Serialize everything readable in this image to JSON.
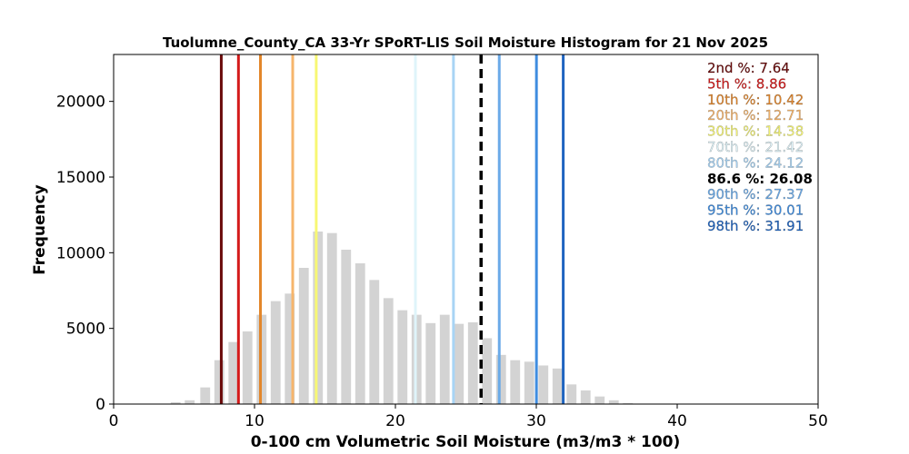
{
  "chart_data": {
    "type": "bar",
    "title": "Tuolumne_County_CA 33-Yr SPoRT-LIS Soil Moisture Histogram for 21 Nov 2025",
    "xlabel": "0-100 cm Volumetric Soil Moisture (m3/m3 * 100)",
    "ylabel": "Frequency",
    "xlim": [
      0,
      50
    ],
    "ylim": [
      0,
      23100
    ],
    "xticks": [
      0,
      10,
      20,
      30,
      40,
      50
    ],
    "yticks": [
      0,
      5000,
      10000,
      15000,
      20000
    ],
    "bar_color": "#d3d3d3",
    "bins": [
      {
        "x": 3.4,
        "value": 30
      },
      {
        "x": 4.4,
        "value": 120
      },
      {
        "x": 5.4,
        "value": 250
      },
      {
        "x": 6.5,
        "value": 1100
      },
      {
        "x": 7.5,
        "value": 2900
      },
      {
        "x": 8.5,
        "value": 4100
      },
      {
        "x": 9.5,
        "value": 4800
      },
      {
        "x": 10.5,
        "value": 5900
      },
      {
        "x": 11.5,
        "value": 6800
      },
      {
        "x": 12.5,
        "value": 7300
      },
      {
        "x": 13.5,
        "value": 9000
      },
      {
        "x": 14.5,
        "value": 11400
      },
      {
        "x": 15.5,
        "value": 11300
      },
      {
        "x": 16.5,
        "value": 10200
      },
      {
        "x": 17.5,
        "value": 9300
      },
      {
        "x": 18.5,
        "value": 8200
      },
      {
        "x": 19.5,
        "value": 7000
      },
      {
        "x": 20.5,
        "value": 6200
      },
      {
        "x": 21.5,
        "value": 5900
      },
      {
        "x": 22.5,
        "value": 5350
      },
      {
        "x": 23.5,
        "value": 5900
      },
      {
        "x": 24.5,
        "value": 5300
      },
      {
        "x": 25.5,
        "value": 5400
      },
      {
        "x": 26.5,
        "value": 4350
      },
      {
        "x": 27.5,
        "value": 3250
      },
      {
        "x": 28.5,
        "value": 2900
      },
      {
        "x": 29.5,
        "value": 2800
      },
      {
        "x": 30.5,
        "value": 2550
      },
      {
        "x": 31.5,
        "value": 2350
      },
      {
        "x": 32.5,
        "value": 1300
      },
      {
        "x": 33.5,
        "value": 900
      },
      {
        "x": 34.5,
        "value": 500
      },
      {
        "x": 35.5,
        "value": 250
      },
      {
        "x": 36.5,
        "value": 60
      }
    ],
    "percentiles": [
      {
        "label": "2nd %: 7.64",
        "value": 7.64,
        "color": "#6b0a0a",
        "dashed": false
      },
      {
        "label": "5th %: 8.86",
        "value": 8.86,
        "color": "#d41a1a",
        "dashed": false
      },
      {
        "label": "10th %: 10.42",
        "value": 10.42,
        "color": "#e3862a",
        "dashed": false
      },
      {
        "label": "20th %: 12.71",
        "value": 12.71,
        "color": "#f6b56b",
        "dashed": false
      },
      {
        "label": "30th %: 14.38",
        "value": 14.38,
        "color": "#f7f774",
        "dashed": false
      },
      {
        "label": "70th %: 21.42",
        "value": 21.42,
        "color": "#dff4fa",
        "dashed": false
      },
      {
        "label": "80th %: 24.12",
        "value": 24.12,
        "color": "#a8d4f5",
        "dashed": false
      },
      {
        "label": "86.6 %: 26.08",
        "value": 26.08,
        "color": "#000000",
        "dashed": true
      },
      {
        "label": "90th %: 27.37",
        "value": 27.37,
        "color": "#6aaae8",
        "dashed": false
      },
      {
        "label": "95th %: 30.01",
        "value": 30.01,
        "color": "#3f8de0",
        "dashed": false
      },
      {
        "label": "98th %: 31.91",
        "value": 31.91,
        "color": "#1f64c0",
        "dashed": false
      }
    ]
  }
}
